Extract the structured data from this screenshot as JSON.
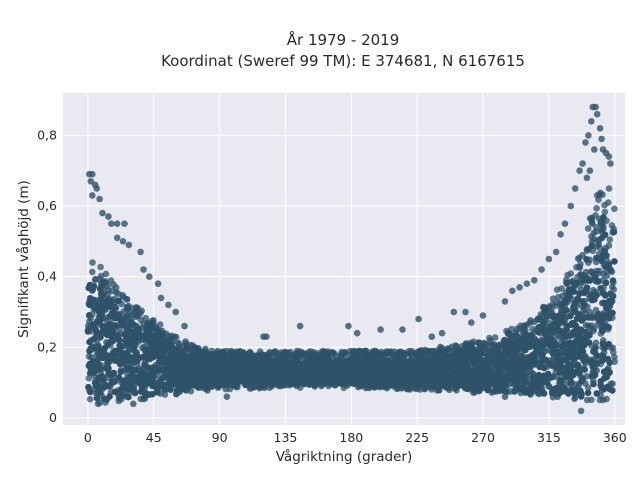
{
  "chart_data": {
    "type": "scatter",
    "title_line1": "År 1979 - 2019",
    "title_line2": "Koordinat (Sweref 99 TM): E 374681, N 6167615",
    "xlabel": "Vågriktning (grader)",
    "ylabel": "Signifikant våghöjd (m)",
    "xlim": [
      -17,
      367
    ],
    "ylim": [
      -0.02,
      0.92
    ],
    "x_ticks": [
      0,
      45,
      90,
      135,
      180,
      225,
      270,
      315,
      360
    ],
    "x_tick_labels": [
      "0",
      "45",
      "90",
      "135",
      "180",
      "225",
      "270",
      "315",
      "360"
    ],
    "y_ticks": [
      0,
      0.2,
      0.4,
      0.6,
      0.8
    ],
    "y_tick_labels": [
      "0",
      "0,2",
      "0,4",
      "0,6",
      "0,8"
    ],
    "grid": true,
    "marker_color": "#2e5268",
    "plot_background": "#e8e9f1",
    "envelope": {
      "x": [
        0,
        5,
        10,
        20,
        30,
        45,
        60,
        75,
        90,
        135,
        180,
        225,
        270,
        300,
        315,
        330,
        340,
        345,
        350,
        355,
        360
      ],
      "y_low": [
        0.04,
        0.04,
        0.04,
        0.045,
        0.05,
        0.055,
        0.065,
        0.075,
        0.08,
        0.085,
        0.085,
        0.08,
        0.07,
        0.06,
        0.055,
        0.05,
        0.045,
        0.045,
        0.045,
        0.045,
        0.045
      ],
      "y_high_dense": [
        0.44,
        0.47,
        0.42,
        0.37,
        0.33,
        0.28,
        0.23,
        0.2,
        0.19,
        0.19,
        0.19,
        0.19,
        0.22,
        0.27,
        0.33,
        0.42,
        0.52,
        0.6,
        0.66,
        0.68,
        0.62
      ]
    },
    "outliers": [
      {
        "x": 1,
        "y": 0.69
      },
      {
        "x": 3,
        "y": 0.69
      },
      {
        "x": 2,
        "y": 0.67
      },
      {
        "x": 5,
        "y": 0.66
      },
      {
        "x": 6,
        "y": 0.65
      },
      {
        "x": 8,
        "y": 0.62
      },
      {
        "x": 3,
        "y": 0.63
      },
      {
        "x": 10,
        "y": 0.58
      },
      {
        "x": 14,
        "y": 0.57
      },
      {
        "x": 16,
        "y": 0.55
      },
      {
        "x": 20,
        "y": 0.55
      },
      {
        "x": 25,
        "y": 0.55
      },
      {
        "x": 20,
        "y": 0.51
      },
      {
        "x": 24,
        "y": 0.5
      },
      {
        "x": 28,
        "y": 0.49
      },
      {
        "x": 36,
        "y": 0.47
      },
      {
        "x": 38,
        "y": 0.42
      },
      {
        "x": 42,
        "y": 0.4
      },
      {
        "x": 48,
        "y": 0.38
      },
      {
        "x": 50,
        "y": 0.34
      },
      {
        "x": 55,
        "y": 0.32
      },
      {
        "x": 60,
        "y": 0.3
      },
      {
        "x": 66,
        "y": 0.26
      },
      {
        "x": 120,
        "y": 0.23
      },
      {
        "x": 122,
        "y": 0.23
      },
      {
        "x": 145,
        "y": 0.26
      },
      {
        "x": 178,
        "y": 0.26
      },
      {
        "x": 184,
        "y": 0.24
      },
      {
        "x": 200,
        "y": 0.25
      },
      {
        "x": 215,
        "y": 0.25
      },
      {
        "x": 226,
        "y": 0.28
      },
      {
        "x": 235,
        "y": 0.23
      },
      {
        "x": 242,
        "y": 0.24
      },
      {
        "x": 250,
        "y": 0.3
      },
      {
        "x": 258,
        "y": 0.3
      },
      {
        "x": 262,
        "y": 0.27
      },
      {
        "x": 270,
        "y": 0.29
      },
      {
        "x": 285,
        "y": 0.33
      },
      {
        "x": 290,
        "y": 0.36
      },
      {
        "x": 295,
        "y": 0.37
      },
      {
        "x": 300,
        "y": 0.38
      },
      {
        "x": 305,
        "y": 0.39
      },
      {
        "x": 310,
        "y": 0.42
      },
      {
        "x": 315,
        "y": 0.45
      },
      {
        "x": 320,
        "y": 0.47
      },
      {
        "x": 323,
        "y": 0.52
      },
      {
        "x": 326,
        "y": 0.55
      },
      {
        "x": 330,
        "y": 0.6
      },
      {
        "x": 333,
        "y": 0.65
      },
      {
        "x": 336,
        "y": 0.7
      },
      {
        "x": 338,
        "y": 0.72
      },
      {
        "x": 340,
        "y": 0.78
      },
      {
        "x": 342,
        "y": 0.8
      },
      {
        "x": 344,
        "y": 0.84
      },
      {
        "x": 345,
        "y": 0.88
      },
      {
        "x": 347,
        "y": 0.88
      },
      {
        "x": 348,
        "y": 0.86
      },
      {
        "x": 350,
        "y": 0.82
      },
      {
        "x": 351,
        "y": 0.79
      },
      {
        "x": 352,
        "y": 0.76
      },
      {
        "x": 354,
        "y": 0.75
      },
      {
        "x": 356,
        "y": 0.74
      },
      {
        "x": 357,
        "y": 0.72
      },
      {
        "x": 346,
        "y": 0.76
      },
      {
        "x": 343,
        "y": 0.7
      },
      {
        "x": 341,
        "y": 0.68
      },
      {
        "x": 7,
        "y": 0.04
      },
      {
        "x": 337,
        "y": 0.02
      },
      {
        "x": 31,
        "y": 0.04
      },
      {
        "x": 95,
        "y": 0.06
      },
      {
        "x": 285,
        "y": 0.06
      }
    ]
  }
}
